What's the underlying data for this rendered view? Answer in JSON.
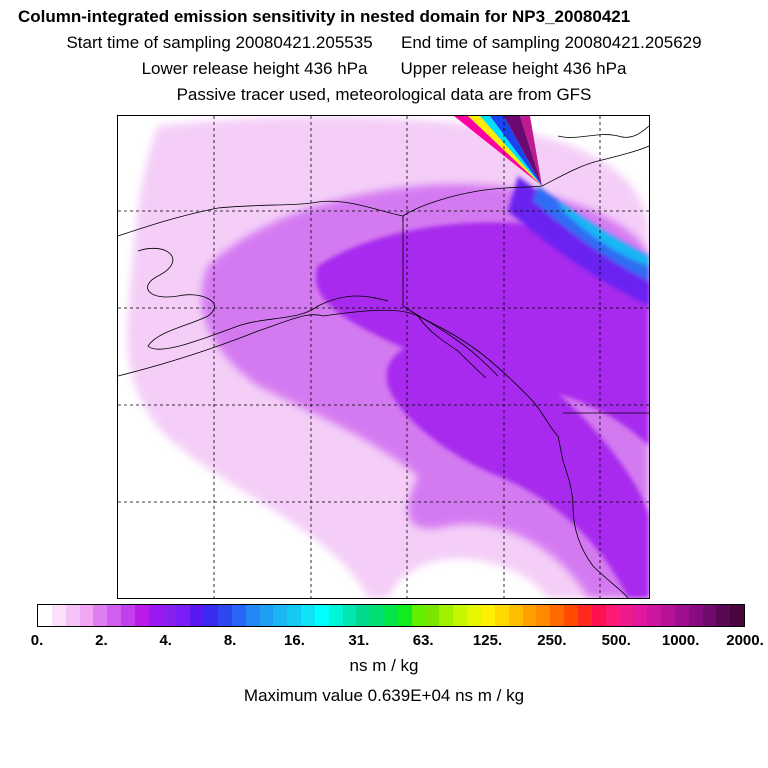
{
  "header": {
    "title": "Column-integrated emission sensitivity in nested domain for NP3_20080421",
    "start_label": "Start time of sampling 20080421.205535",
    "end_label": "End time of sampling 20080421.205629",
    "lower_label": "Lower release height  436 hPa",
    "upper_label": "Upper release height  436 hPa",
    "tracer_note": "Passive tracer used, meteorological data are from GFS"
  },
  "legend": {
    "units": "ns m / kg",
    "max_value": "Maximum value  0.639E+04 ns m / kg",
    "ticks": [
      "0.",
      "2.",
      "4.",
      "8.",
      "16.",
      "31.",
      "63.",
      "125.",
      "250.",
      "500.",
      "1000.",
      "2000."
    ],
    "colors": [
      "#ffffff",
      "#fbe0fb",
      "#f5c3f7",
      "#f0a6f3",
      "#dd7ef2",
      "#d05ff0",
      "#c23fee",
      "#b91ceb",
      "#9c18f0",
      "#8a20ee",
      "#7a1ef5",
      "#5a19f2",
      "#3b2af0",
      "#2f47ef",
      "#2a66f5",
      "#2387f5",
      "#1e9ff4",
      "#1ab6f4",
      "#14c9f4",
      "#10e3f7",
      "#00ffff",
      "#00f5d6",
      "#00e6b0",
      "#00d890",
      "#00e070",
      "#00e648",
      "#10ec20",
      "#60f000",
      "#7ae600",
      "#a0f000",
      "#c6f500",
      "#e6f500",
      "#ffef00",
      "#ffd800",
      "#ffbd00",
      "#ffa000",
      "#ff8a00",
      "#ff6a00",
      "#ff4a00",
      "#ff2a20",
      "#ff1050",
      "#ff1a78",
      "#f01a8f",
      "#e0199f",
      "#cc16a0",
      "#b8129a",
      "#a00f90",
      "#880c80",
      "#700a6c",
      "#5a0856",
      "#48063f"
    ]
  },
  "map": {
    "colors": {
      "plume_light": "#f3c6f6",
      "plume_mid": "#cf6cf1",
      "plume_dense": "#a322ee",
      "core_violet": "#6a22f0",
      "core_blue": "#2f6df4",
      "core_cyan": "#19b7f4",
      "coast": "#000000",
      "grid": "#000000"
    }
  }
}
